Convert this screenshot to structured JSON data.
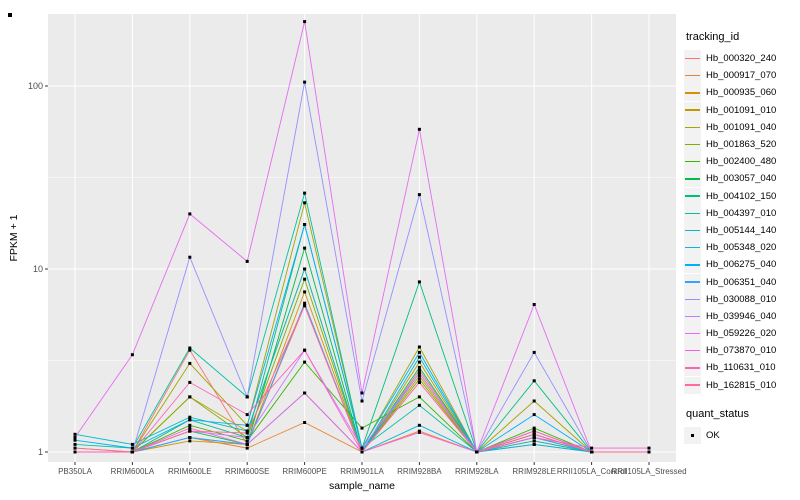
{
  "window": {
    "background": "#ffffff"
  },
  "chart_data": {
    "type": "line",
    "title": "",
    "xlabel": "sample_name",
    "ylabel": "FPKM + 1",
    "y_scale": "log10",
    "y_ticks": [
      1,
      10,
      100
    ],
    "y_minor_ticks": [
      3.162,
      31.62
    ],
    "ylim": [
      1,
      250
    ],
    "legend_title": "tracking_id",
    "legend_position": "right",
    "grid": "on",
    "panel_bg": "#EBEBEB",
    "grid_color": "#FFFFFF",
    "tick_text_color": "#4D4D4D",
    "tick_mark_color": "#333333",
    "point_color": "#000000",
    "categories": [
      "PB350LA",
      "RRIM600LA",
      "RRIM600LE",
      "RRIM600SE",
      "RRIM600PE",
      "RRIM901LA",
      "RRIM928BA",
      "RRIM928LA",
      "RRIM928LE",
      "RRII105LA_Control",
      "RRII105LA_Stressed"
    ],
    "series": [
      {
        "name": "Hb_000320_240",
        "color": "#F8766D",
        "values": [
          1.0,
          1.0,
          3.6,
          1.1,
          6.3,
          1.0,
          2.8,
          1.0,
          1.25,
          1.0,
          1.0
        ]
      },
      {
        "name": "Hb_000917_070",
        "color": "#EA8331",
        "values": [
          1.0,
          1.0,
          1.2,
          1.05,
          1.45,
          1.0,
          1.3,
          1.0,
          1.1,
          1.0,
          1.0
        ]
      },
      {
        "name": "Hb_000935_060",
        "color": "#D89000",
        "values": [
          1.0,
          1.0,
          1.15,
          1.1,
          7.5,
          1.0,
          2.6,
          1.0,
          1.15,
          1.0,
          1.0
        ]
      },
      {
        "name": "Hb_001091_010",
        "color": "#C09B00",
        "values": [
          1.0,
          1.0,
          2.0,
          1.3,
          10.0,
          1.0,
          3.1,
          1.0,
          1.2,
          1.0,
          1.0
        ]
      },
      {
        "name": "Hb_001091_040",
        "color": "#A3A500",
        "values": [
          1.05,
          1.0,
          3.05,
          1.4,
          23.0,
          1.05,
          3.75,
          1.0,
          1.9,
          1.0,
          1.0
        ]
      },
      {
        "name": "Hb_001863_520",
        "color": "#7CAE00",
        "values": [
          1.0,
          1.0,
          2.0,
          1.2,
          8.8,
          1.0,
          2.5,
          1.0,
          1.3,
          1.0,
          1.0
        ]
      },
      {
        "name": "Hb_002400_480",
        "color": "#39B600",
        "values": [
          1.0,
          1.0,
          1.4,
          1.15,
          3.1,
          1.35,
          2.0,
          1.0,
          1.35,
          1.0,
          1.0
        ]
      },
      {
        "name": "Hb_003057_040",
        "color": "#00BB4E",
        "values": [
          1.0,
          1.0,
          1.3,
          1.1,
          13.0,
          1.0,
          2.9,
          1.0,
          1.25,
          1.0,
          1.0
        ]
      },
      {
        "name": "Hb_004102_150",
        "color": "#00BF7D",
        "values": [
          1.0,
          1.0,
          1.5,
          1.2,
          17.5,
          1.05,
          8.5,
          1.0,
          2.45,
          1.0,
          1.0
        ]
      },
      {
        "name": "Hb_004397_010",
        "color": "#00C1A3",
        "values": [
          1.1,
          1.05,
          3.7,
          2.0,
          26.0,
          1.05,
          1.8,
          1.0,
          1.2,
          1.0,
          1.0
        ]
      },
      {
        "name": "Hb_005144_140",
        "color": "#00BFC4",
        "values": [
          1.25,
          1.1,
          1.55,
          1.3,
          10.0,
          1.0,
          3.3,
          1.0,
          1.15,
          1.0,
          1.0
        ]
      },
      {
        "name": "Hb_005348_020",
        "color": "#00BAE0",
        "values": [
          1.0,
          1.0,
          1.2,
          1.1,
          2.1,
          1.0,
          1.4,
          1.0,
          1.1,
          1.0,
          1.0
        ]
      },
      {
        "name": "Hb_006275_040",
        "color": "#00B0F6",
        "values": [
          1.16,
          1.05,
          1.5,
          1.4,
          17.5,
          1.05,
          3.5,
          1.0,
          1.6,
          1.0,
          1.0
        ]
      },
      {
        "name": "Hb_006351_040",
        "color": "#35A2FF",
        "values": [
          1.0,
          1.0,
          1.2,
          1.1,
          6.5,
          1.0,
          2.7,
          1.0,
          1.2,
          1.0,
          1.0
        ]
      },
      {
        "name": "Hb_030088_010",
        "color": "#9590FF",
        "values": [
          1.0,
          1.0,
          11.6,
          2.0,
          105.0,
          1.9,
          25.5,
          1.0,
          3.5,
          1.0,
          1.0
        ]
      },
      {
        "name": "Hb_039946_040",
        "color": "#C77CFF",
        "values": [
          1.0,
          1.0,
          1.3,
          1.2,
          3.6,
          1.05,
          2.7,
          1.0,
          1.3,
          1.0,
          1.0
        ]
      },
      {
        "name": "Hb_059226_020",
        "color": "#E76BF3",
        "values": [
          1.2,
          3.4,
          20.0,
          11.0,
          225.0,
          2.1,
          58.0,
          1.0,
          6.4,
          1.0,
          1.0
        ]
      },
      {
        "name": "Hb_073870_010",
        "color": "#FA62DB",
        "values": [
          1.0,
          1.0,
          1.35,
          1.1,
          2.1,
          1.0,
          1.28,
          1.0,
          1.2,
          1.05,
          1.05
        ]
      },
      {
        "name": "Hb_110631_010",
        "color": "#FF62BC",
        "values": [
          1.0,
          1.0,
          2.4,
          1.6,
          3.6,
          1.0,
          2.4,
          1.0,
          1.3,
          1.0,
          1.0
        ]
      },
      {
        "name": "Hb_162815_010",
        "color": "#FF6A98",
        "values": [
          1.05,
          1.0,
          1.3,
          1.27,
          6.3,
          1.0,
          2.4,
          1.0,
          1.25,
          1.0,
          1.0
        ]
      }
    ],
    "quant_legend": {
      "title": "quant_status",
      "item": "OK"
    }
  }
}
